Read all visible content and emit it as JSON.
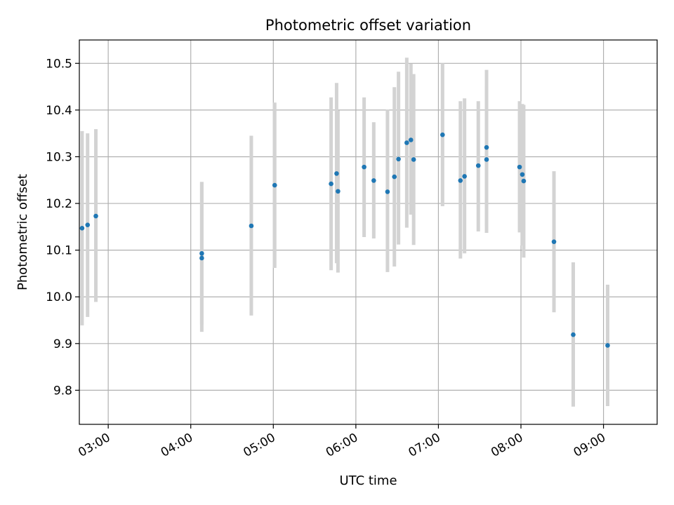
{
  "chart_data": {
    "type": "scatter",
    "title": "Photometric offset variation",
    "xlabel": "UTC time",
    "ylabel": "Photometric offset",
    "xlim": [
      "02:39",
      "09:39"
    ],
    "ylim": [
      9.727,
      10.55
    ],
    "x_ticks": [
      "03:00",
      "04:00",
      "05:00",
      "06:00",
      "07:00",
      "08:00",
      "09:00"
    ],
    "y_ticks": [
      9.8,
      9.9,
      10.0,
      10.1,
      10.2,
      10.3,
      10.4,
      10.5
    ],
    "y_tick_labels": [
      "9.8",
      "9.9",
      "10.0",
      "10.1",
      "10.2",
      "10.3",
      "10.4",
      "10.5"
    ],
    "grid": true,
    "colors": {
      "point": "#1f77b4",
      "errorbar": "#d3d3d3",
      "grid": "#b0b0b0"
    },
    "series": [
      {
        "points": [
          {
            "x": "02:41",
            "y": 10.147,
            "lo": 9.939,
            "hi": 10.355
          },
          {
            "x": "02:45",
            "y": 10.154,
            "lo": 9.957,
            "hi": 10.35
          },
          {
            "x": "02:51",
            "y": 10.173,
            "lo": 9.989,
            "hi": 10.359
          },
          {
            "x": "04:08",
            "y": 10.083,
            "lo": 9.925,
            "hi": 10.246
          },
          {
            "x": "04:08",
            "y": 10.093,
            "lo": 9.94,
            "hi": 10.246
          },
          {
            "x": "04:44",
            "y": 10.152,
            "lo": 9.96,
            "hi": 10.345
          },
          {
            "x": "05:01",
            "y": 10.239,
            "lo": 10.062,
            "hi": 10.416
          },
          {
            "x": "05:42",
            "y": 10.242,
            "lo": 10.057,
            "hi": 10.427
          },
          {
            "x": "05:46",
            "y": 10.264,
            "lo": 10.072,
            "hi": 10.458
          },
          {
            "x": "05:47",
            "y": 10.226,
            "lo": 10.052,
            "hi": 10.399
          },
          {
            "x": "06:06",
            "y": 10.278,
            "lo": 10.128,
            "hi": 10.427
          },
          {
            "x": "06:13",
            "y": 10.249,
            "lo": 10.125,
            "hi": 10.374
          },
          {
            "x": "06:23",
            "y": 10.225,
            "lo": 10.053,
            "hi": 10.401
          },
          {
            "x": "06:28",
            "y": 10.257,
            "lo": 10.065,
            "hi": 10.449
          },
          {
            "x": "06:31",
            "y": 10.295,
            "lo": 10.112,
            "hi": 10.482
          },
          {
            "x": "06:37",
            "y": 10.33,
            "lo": 10.148,
            "hi": 10.512
          },
          {
            "x": "06:40",
            "y": 10.336,
            "lo": 10.176,
            "hi": 10.499
          },
          {
            "x": "06:42",
            "y": 10.294,
            "lo": 10.111,
            "hi": 10.477
          },
          {
            "x": "07:03",
            "y": 10.347,
            "lo": 10.194,
            "hi": 10.5
          },
          {
            "x": "07:16",
            "y": 10.249,
            "lo": 10.082,
            "hi": 10.419
          },
          {
            "x": "07:19",
            "y": 10.258,
            "lo": 10.093,
            "hi": 10.425
          },
          {
            "x": "07:29",
            "y": 10.281,
            "lo": 10.14,
            "hi": 10.419
          },
          {
            "x": "07:35",
            "y": 10.32,
            "lo": 10.153,
            "hi": 10.486
          },
          {
            "x": "07:35",
            "y": 10.294,
            "lo": 10.137,
            "hi": 10.451
          },
          {
            "x": "07:59",
            "y": 10.278,
            "lo": 10.138,
            "hi": 10.419
          },
          {
            "x": "08:01",
            "y": 10.262,
            "lo": 10.11,
            "hi": 10.413
          },
          {
            "x": "08:02",
            "y": 10.248,
            "lo": 10.084,
            "hi": 10.411
          },
          {
            "x": "08:24",
            "y": 10.118,
            "lo": 9.967,
            "hi": 10.269
          },
          {
            "x": "08:38",
            "y": 9.919,
            "lo": 9.765,
            "hi": 10.074
          },
          {
            "x": "09:03",
            "y": 9.896,
            "lo": 9.766,
            "hi": 10.026
          }
        ]
      }
    ]
  }
}
